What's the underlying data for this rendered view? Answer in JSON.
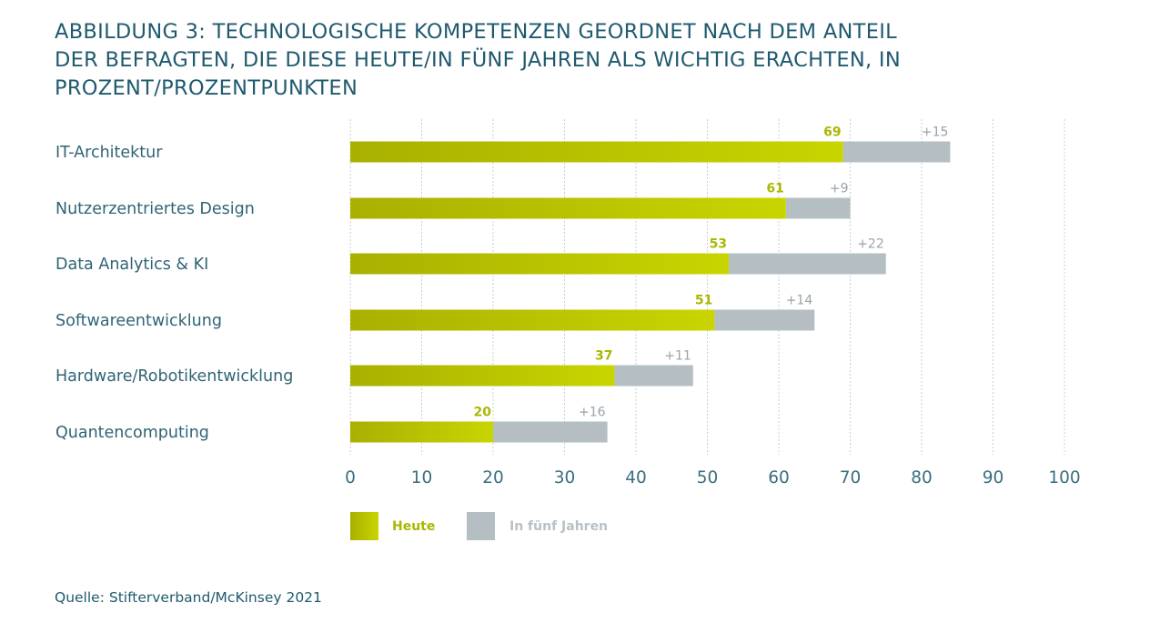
{
  "title_lines": [
    "ABBILDUNG 3: TECHNOLOGISCHE KOMPETENZEN GEORDNET NACH DEM ANTEIL",
    "DER BEFRAGTEN, DIE DIESE HEUTE/IN FÜNF JAHREN ALS WICHTIG ERACHTEN, IN",
    "PROZENT/PROZENTPUNKTEN"
  ],
  "source": "Quelle: Stifterverband/McKinsey 2021",
  "colors": {
    "heute_start": "#a9b000",
    "heute_end": "#c9d500",
    "future": "#b5bec3",
    "heute_label": "#aab800",
    "future_label": "#9aa3a8"
  },
  "chart_data": {
    "type": "bar",
    "orientation": "horizontal",
    "stacked": true,
    "title": "Technologische Kompetenzen",
    "categories": [
      "IT-Architektur",
      "Nutzerzentriertes Design",
      "Data Analytics & KI",
      "Softwareentwicklung",
      "Hardware/Robotikentwicklung",
      "Quantencomputing"
    ],
    "series": [
      {
        "name": "Heute",
        "values": [
          69,
          61,
          53,
          51,
          37,
          20
        ],
        "labels": [
          "69",
          "61",
          "53",
          "51",
          "37",
          "20"
        ]
      },
      {
        "name": "In fünf Jahren",
        "values": [
          15,
          9,
          22,
          14,
          11,
          16
        ],
        "labels": [
          "+15",
          "+9",
          "+22",
          "+14",
          "+11",
          "+16"
        ]
      }
    ],
    "xlim": [
      0,
      100
    ],
    "xticks": [
      "0",
      "10",
      "20",
      "30",
      "40",
      "50",
      "60",
      "70",
      "80",
      "90",
      "100"
    ],
    "grid": true,
    "legend": {
      "position": "bottom-left",
      "entries": [
        "Heute",
        "In fünf Jahren"
      ]
    }
  }
}
